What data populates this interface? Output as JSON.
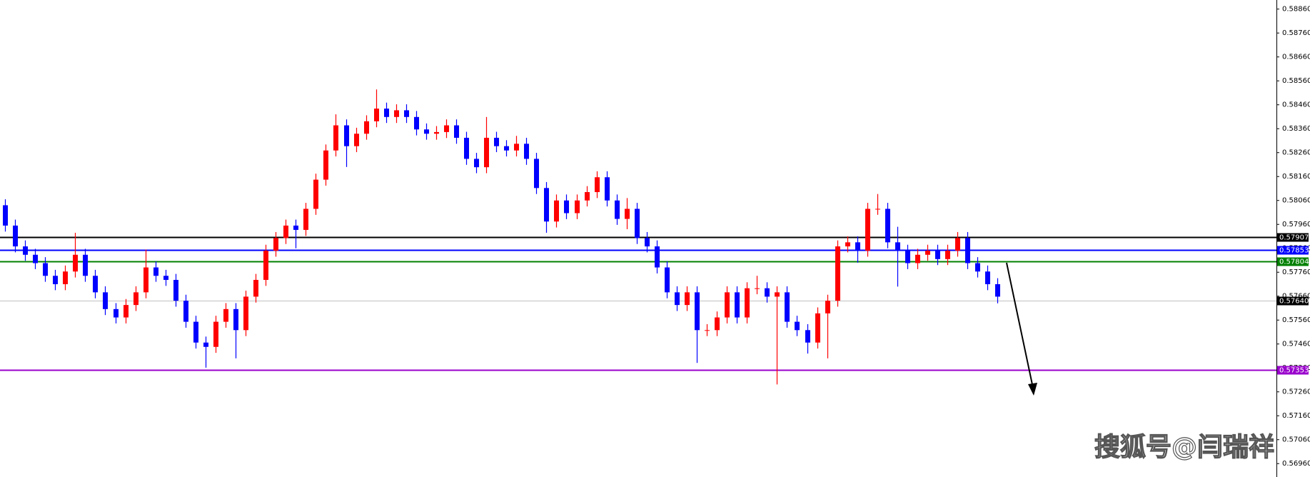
{
  "chart_data": {
    "type": "candlestick",
    "up_color": "#ff0000",
    "down_color": "#0000ff",
    "ylim": [
      0.56904,
      0.58898
    ],
    "yticks": [
      {
        "value": 0.5886,
        "label": "0.58860"
      },
      {
        "value": 0.5876,
        "label": "0.58760"
      },
      {
        "value": 0.5866,
        "label": "0.58660"
      },
      {
        "value": 0.5856,
        "label": "0.58560"
      },
      {
        "value": 0.5846,
        "label": "0.58460"
      },
      {
        "value": 0.5836,
        "label": "0.58360"
      },
      {
        "value": 0.5826,
        "label": "0.58260"
      },
      {
        "value": 0.5816,
        "label": "0.58160"
      },
      {
        "value": 0.5806,
        "label": "0.58060"
      },
      {
        "value": 0.5796,
        "label": "0.57960"
      },
      {
        "value": 0.5786,
        "label": "0.57860"
      },
      {
        "value": 0.5776,
        "label": "0.57760"
      },
      {
        "value": 0.5766,
        "label": "0.57660"
      },
      {
        "value": 0.5756,
        "label": "0.57560"
      },
      {
        "value": 0.5746,
        "label": "0.57460"
      },
      {
        "value": 0.5736,
        "label": "0.57360"
      },
      {
        "value": 0.5726,
        "label": "0.57260"
      },
      {
        "value": 0.5716,
        "label": "0.57160"
      },
      {
        "value": 0.5706,
        "label": "0.57060"
      },
      {
        "value": 0.5696,
        "label": "0.56960"
      }
    ],
    "levels": [
      {
        "price": 0.57907,
        "color": "#000000"
      },
      {
        "price": 0.57853,
        "color": "#0000ff"
      },
      {
        "price": 0.57804,
        "color": "#008000"
      },
      {
        "price": {
          "value": 0.5764,
          "label": "0.57640"
        },
        "color": "#c0c0c0"
      },
      {
        "price": 0.57353,
        "color": "#9900cc"
      }
    ],
    "open": [
      0.5804,
      0.57955,
      0.57868,
      0.57833,
      0.57798,
      0.57745,
      0.5771,
      0.57763,
      0.57833,
      0.57745,
      0.57676,
      0.57606,
      0.57571,
      0.57623,
      0.57676,
      0.5778,
      0.57745,
      0.57728,
      0.57641,
      0.57553,
      0.57466,
      0.57448,
      0.57553,
      0.57606,
      0.57518,
      0.57658,
      0.57728,
      0.5785,
      0.57903,
      0.57955,
      0.57937,
      0.58025,
      0.58147,
      0.58269,
      0.58374,
      0.58287,
      0.58339,
      0.58391,
      0.58444,
      0.58409,
      0.58437,
      0.58409,
      0.58357,
      0.58339,
      0.58346,
      0.58374,
      0.58322,
      0.58234,
      0.58199,
      0.58322,
      0.58287,
      0.58269,
      0.58297,
      0.58234,
      0.58112,
      0.57972,
      0.5806,
      0.58007,
      0.5806,
      0.58095,
      0.58157,
      0.5806,
      0.57983,
      0.58025,
      0.57903,
      0.57868,
      0.5778,
      0.57676,
      0.57623,
      0.57676,
      0.57518,
      0.57518,
      0.57571,
      0.57676,
      0.57571,
      0.57693,
      0.57693,
      0.57658,
      0.57676,
      0.57553,
      0.57518,
      0.57466,
      0.57588,
      0.57641,
      0.57868,
      0.57885,
      0.5785,
      0.58025,
      0.58025,
      0.57885,
      0.5785,
      0.57798,
      0.57833,
      0.5785,
      0.57815,
      0.5785,
      0.57903,
      0.57798,
      0.57763,
      0.5771
    ],
    "high": [
      0.58065,
      0.5798,
      0.57893,
      0.57858,
      0.57823,
      0.5777,
      0.57788,
      0.57925,
      0.57858,
      0.5777,
      0.57701,
      0.57631,
      0.57648,
      0.57701,
      0.57855,
      0.57805,
      0.5777,
      0.57753,
      0.57666,
      0.57578,
      0.57491,
      0.57578,
      0.57631,
      0.57631,
      0.57683,
      0.57753,
      0.57875,
      0.57928,
      0.5798,
      0.5798,
      0.5805,
      0.58172,
      0.58294,
      0.5842,
      0.58399,
      0.58364,
      0.58416,
      0.58524,
      0.58469,
      0.58462,
      0.58462,
      0.58434,
      0.58382,
      0.58371,
      0.58399,
      0.58399,
      0.58347,
      0.58259,
      0.58409,
      0.58347,
      0.58312,
      0.5833,
      0.58322,
      0.58259,
      0.58137,
      0.58085,
      0.58085,
      0.58085,
      0.5812,
      0.58182,
      0.58182,
      0.58085,
      0.5807,
      0.5805,
      0.57928,
      0.57893,
      0.57805,
      0.57701,
      0.57701,
      0.57701,
      0.57543,
      0.57596,
      0.57701,
      0.57701,
      0.57718,
      0.57745,
      0.57718,
      0.57701,
      0.57701,
      0.57578,
      0.57543,
      0.57613,
      0.57666,
      0.57893,
      0.5791,
      0.5791,
      0.5805,
      0.58087,
      0.5805,
      0.5795,
      0.57875,
      0.57858,
      0.57875,
      0.57875,
      0.57875,
      0.57928,
      0.57928,
      0.57823,
      0.57788,
      0.57735
    ],
    "low": [
      0.5793,
      0.57843,
      0.57808,
      0.57773,
      0.5772,
      0.57685,
      0.57685,
      0.57738,
      0.5772,
      0.57651,
      0.57581,
      0.57546,
      0.57546,
      0.57598,
      0.57651,
      0.5772,
      0.57703,
      0.57616,
      0.57528,
      0.57441,
      0.57361,
      0.57423,
      0.57528,
      0.574,
      0.57493,
      0.57633,
      0.57703,
      0.57825,
      0.57878,
      0.5786,
      0.57912,
      0.58,
      0.58122,
      0.58244,
      0.582,
      0.58262,
      0.58314,
      0.58366,
      0.58384,
      0.58384,
      0.58384,
      0.58332,
      0.58314,
      0.58314,
      0.58321,
      0.58297,
      0.58209,
      0.58174,
      0.58174,
      0.58262,
      0.58244,
      0.58244,
      0.58209,
      0.58087,
      0.57925,
      0.57947,
      0.57982,
      0.57982,
      0.58035,
      0.5807,
      0.58035,
      0.57958,
      0.5794,
      0.57878,
      0.57843,
      0.57755,
      0.57651,
      0.57598,
      0.57598,
      0.57381,
      0.57493,
      0.57493,
      0.57546,
      0.57546,
      0.57546,
      0.57668,
      0.57633,
      0.57291,
      0.57528,
      0.57493,
      0.5742,
      0.57441,
      0.574,
      0.57616,
      0.57843,
      0.578,
      0.57825,
      0.58,
      0.5786,
      0.577,
      0.57773,
      0.57773,
      0.57808,
      0.5779,
      0.5779,
      0.57825,
      0.57773,
      0.57738,
      0.57685,
      0.5763
    ],
    "close": [
      0.57955,
      0.57868,
      0.57833,
      0.57798,
      0.57745,
      0.5771,
      0.57763,
      0.57833,
      0.57745,
      0.57676,
      0.57606,
      0.57571,
      0.57623,
      0.57676,
      0.5778,
      0.57745,
      0.57728,
      0.57641,
      0.57553,
      0.57466,
      0.57448,
      0.57553,
      0.57606,
      0.57518,
      0.57658,
      0.57728,
      0.5785,
      0.57903,
      0.57955,
      0.57937,
      0.58025,
      0.58147,
      0.58269,
      0.58374,
      0.58287,
      0.58339,
      0.58391,
      0.58444,
      0.58409,
      0.58437,
      0.58409,
      0.58357,
      0.58339,
      0.58346,
      0.58374,
      0.58322,
      0.58234,
      0.58199,
      0.58322,
      0.58287,
      0.58269,
      0.58297,
      0.58234,
      0.58112,
      0.57972,
      0.5806,
      0.58007,
      0.5806,
      0.58095,
      0.58157,
      0.5806,
      0.57983,
      0.58025,
      0.57903,
      0.57868,
      0.5778,
      0.57676,
      0.57623,
      0.57676,
      0.57518,
      0.57518,
      0.57571,
      0.57676,
      0.57571,
      0.57693,
      0.57693,
      0.57658,
      0.57676,
      0.57553,
      0.57518,
      0.57466,
      0.57588,
      0.57641,
      0.57868,
      0.57885,
      0.5785,
      0.58025,
      0.58025,
      0.57885,
      0.5785,
      0.57798,
      0.57833,
      0.5785,
      0.57815,
      0.5785,
      0.57903,
      0.57798,
      0.57763,
      0.5771,
      0.57658
    ],
    "watermark": "搜狐号@闫瑞祥"
  }
}
